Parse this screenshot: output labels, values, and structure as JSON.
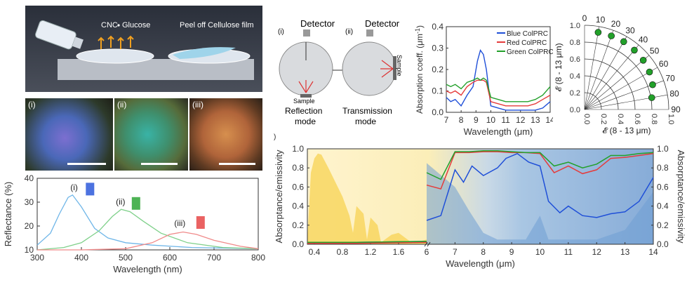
{
  "fabrication": {
    "step1_label": "CNC",
    "step1_glucose": "Glucose",
    "step2_label": "Peel off Cellulose film"
  },
  "photos": {
    "labels": [
      "(i)",
      "(ii)",
      "(iii)"
    ]
  },
  "colors": {
    "blue": "#1f4fd8",
    "red": "#e53b3b",
    "green": "#22a02a",
    "blue_film": "#6fb6e8",
    "green_film": "#7fd08a",
    "red_film": "#f08a8a"
  },
  "chart_data": [
    {
      "type": "line",
      "title": "",
      "xlabel": "Wavelength (nm)",
      "ylabel": "Reflectance (%)",
      "xlim": [
        300,
        800
      ],
      "ylim": [
        10,
        40
      ],
      "x_ticks": [
        "300",
        "400",
        "500",
        "600",
        "700",
        "800"
      ],
      "y_ticks": [
        "10",
        "20",
        "30",
        "40"
      ],
      "annotations": [
        "(i)",
        "(ii)",
        "(iii)"
      ],
      "series": [
        {
          "x": [
            300,
            330,
            350,
            370,
            380,
            400,
            430,
            460,
            500,
            560,
            650,
            800
          ],
          "values": [
            12,
            17,
            25,
            32,
            33,
            28,
            19,
            15,
            13,
            12,
            11,
            10.5
          ]
        },
        {
          "x": [
            300,
            360,
            400,
            440,
            470,
            490,
            510,
            540,
            580,
            640,
            720,
            800
          ],
          "values": [
            10,
            11,
            13,
            18,
            24,
            27,
            26,
            22,
            17,
            13,
            11,
            10.5
          ]
        },
        {
          "x": [
            300,
            400,
            500,
            560,
            600,
            630,
            660,
            700,
            760,
            800
          ],
          "values": [
            10,
            10,
            10.5,
            13,
            16.5,
            17.5,
            16.5,
            14,
            11.5,
            10.5
          ]
        }
      ]
    },
    {
      "type": "diagram",
      "panel_labels": [
        "(i)",
        "(ii)"
      ],
      "detector_label": "Detector",
      "sample_label": "Sample",
      "mode_labels": [
        "Reflection",
        "mode",
        "Transmission",
        "mode"
      ]
    },
    {
      "type": "line",
      "title": "",
      "xlabel": "Wavelength (μm)",
      "ylabel": "Absorption coeff. (μm",
      "ylabel_sup": "-1",
      "ylabel_close": ")",
      "xlim": [
        7,
        14
      ],
      "ylim": [
        0,
        0.4
      ],
      "x_ticks": [
        "7",
        "8",
        "9",
        "10",
        "11",
        "12",
        "13",
        "14"
      ],
      "y_ticks": [
        "0.0",
        "0.1",
        "0.2",
        "0.3",
        "0.4"
      ],
      "legend": [
        "Blue ColPRC",
        "Red ColPRC",
        "Green ColPRC"
      ],
      "series": [
        {
          "name": "Blue ColPRC",
          "x": [
            7,
            7.3,
            7.6,
            8,
            8.4,
            8.8,
            9.1,
            9.3,
            9.5,
            9.7,
            10,
            10.5,
            11,
            11.5,
            12,
            12.5,
            13,
            13.5,
            14
          ],
          "values": [
            0.07,
            0.05,
            0.06,
            0.03,
            0.08,
            0.12,
            0.24,
            0.29,
            0.27,
            0.2,
            0.03,
            0.02,
            0.01,
            0.01,
            0.01,
            0.01,
            0.01,
            0.02,
            0.05
          ]
        },
        {
          "name": "Red ColPRC",
          "x": [
            7,
            7.3,
            7.6,
            8,
            8.4,
            8.8,
            9.1,
            9.3,
            9.5,
            9.7,
            10,
            10.5,
            11,
            11.5,
            12,
            12.5,
            13,
            13.5,
            14
          ],
          "values": [
            0.1,
            0.09,
            0.1,
            0.08,
            0.12,
            0.14,
            0.15,
            0.15,
            0.15,
            0.14,
            0.05,
            0.04,
            0.03,
            0.03,
            0.03,
            0.03,
            0.04,
            0.06,
            0.08
          ]
        },
        {
          "name": "Green ColPRC",
          "x": [
            7,
            7.3,
            7.6,
            8,
            8.4,
            8.8,
            9.1,
            9.3,
            9.5,
            9.7,
            10,
            10.5,
            11,
            11.5,
            12,
            12.5,
            13,
            13.5,
            14
          ],
          "values": [
            0.13,
            0.12,
            0.13,
            0.11,
            0.14,
            0.15,
            0.16,
            0.15,
            0.16,
            0.15,
            0.07,
            0.06,
            0.05,
            0.05,
            0.05,
            0.05,
            0.06,
            0.08,
            0.12
          ]
        }
      ]
    },
    {
      "type": "scatter",
      "polar": true,
      "xlabel": "𝓔 (8 - 13 μm)",
      "ylabel": "𝓔 (8 - 13 μm)",
      "x_ticks": [
        "0.0",
        "0.2",
        "0.4",
        "0.6",
        "0.8",
        "1.0"
      ],
      "y_ticks": [
        "0.0",
        "0.2",
        "0.4",
        "0.6",
        "0.8",
        "1.0"
      ],
      "angle_labels": [
        "0",
        "10",
        "20",
        "30",
        "40",
        "50",
        "60",
        "70",
        "80",
        "90"
      ],
      "angles": [
        10,
        20,
        30,
        40,
        50,
        60,
        70,
        80
      ],
      "values": [
        0.93,
        0.93,
        0.93,
        0.92,
        0.91,
        0.89,
        0.86,
        0.81
      ]
    },
    {
      "type": "area",
      "panel_label": ")",
      "xlabel": "Wavelength (μm)",
      "ylabel": "Absorptance/emissivity",
      "ylabel_right": "Absorptance/emissivity",
      "ylim": [
        0,
        1.0
      ],
      "x_ticks": [
        "0.4",
        "0.8",
        "1.2",
        "1.6",
        "6",
        "7",
        "8",
        "9",
        "10",
        "11",
        "12",
        "13",
        "14"
      ],
      "y_ticks": [
        "0.0",
        "0.2",
        "0.4",
        "0.6",
        "0.8",
        "1.0"
      ],
      "x_break": [
        2.0,
        6.0
      ],
      "series": [
        {
          "name": "blue",
          "x": [
            0.3,
            1.0,
            2.0,
            6.0,
            6.5,
            7.0,
            7.3,
            7.6,
            8,
            8.5,
            8.8,
            9.2,
            9.6,
            10,
            10.3,
            10.7,
            11,
            11.5,
            12,
            12.5,
            13,
            13.5,
            14
          ],
          "values": [
            0.02,
            0.02,
            0.03,
            0.25,
            0.3,
            0.78,
            0.65,
            0.82,
            0.72,
            0.8,
            0.9,
            0.95,
            0.86,
            0.82,
            0.45,
            0.33,
            0.4,
            0.3,
            0.28,
            0.32,
            0.34,
            0.45,
            0.7
          ]
        },
        {
          "name": "red",
          "x": [
            0.3,
            1.0,
            2.0,
            6.0,
            6.5,
            7.0,
            7.5,
            8,
            8.5,
            9,
            9.5,
            10,
            10.5,
            11,
            11.5,
            12,
            12.5,
            13,
            13.5,
            14
          ],
          "values": [
            0.01,
            0.01,
            0.02,
            0.62,
            0.58,
            0.96,
            0.96,
            0.97,
            0.97,
            0.96,
            0.96,
            0.95,
            0.75,
            0.82,
            0.74,
            0.78,
            0.9,
            0.91,
            0.93,
            0.95
          ]
        },
        {
          "name": "green",
          "x": [
            0.3,
            1.0,
            2.0,
            6.0,
            6.5,
            7.0,
            7.5,
            8,
            8.5,
            9,
            9.5,
            10,
            10.5,
            11,
            11.5,
            12,
            12.5,
            13,
            13.5,
            14
          ],
          "values": [
            0.02,
            0.02,
            0.03,
            0.75,
            0.68,
            0.97,
            0.97,
            0.98,
            0.98,
            0.97,
            0.96,
            0.96,
            0.82,
            0.86,
            0.8,
            0.84,
            0.93,
            0.93,
            0.95,
            0.96
          ]
        }
      ]
    }
  ],
  "scale_bar": ""
}
